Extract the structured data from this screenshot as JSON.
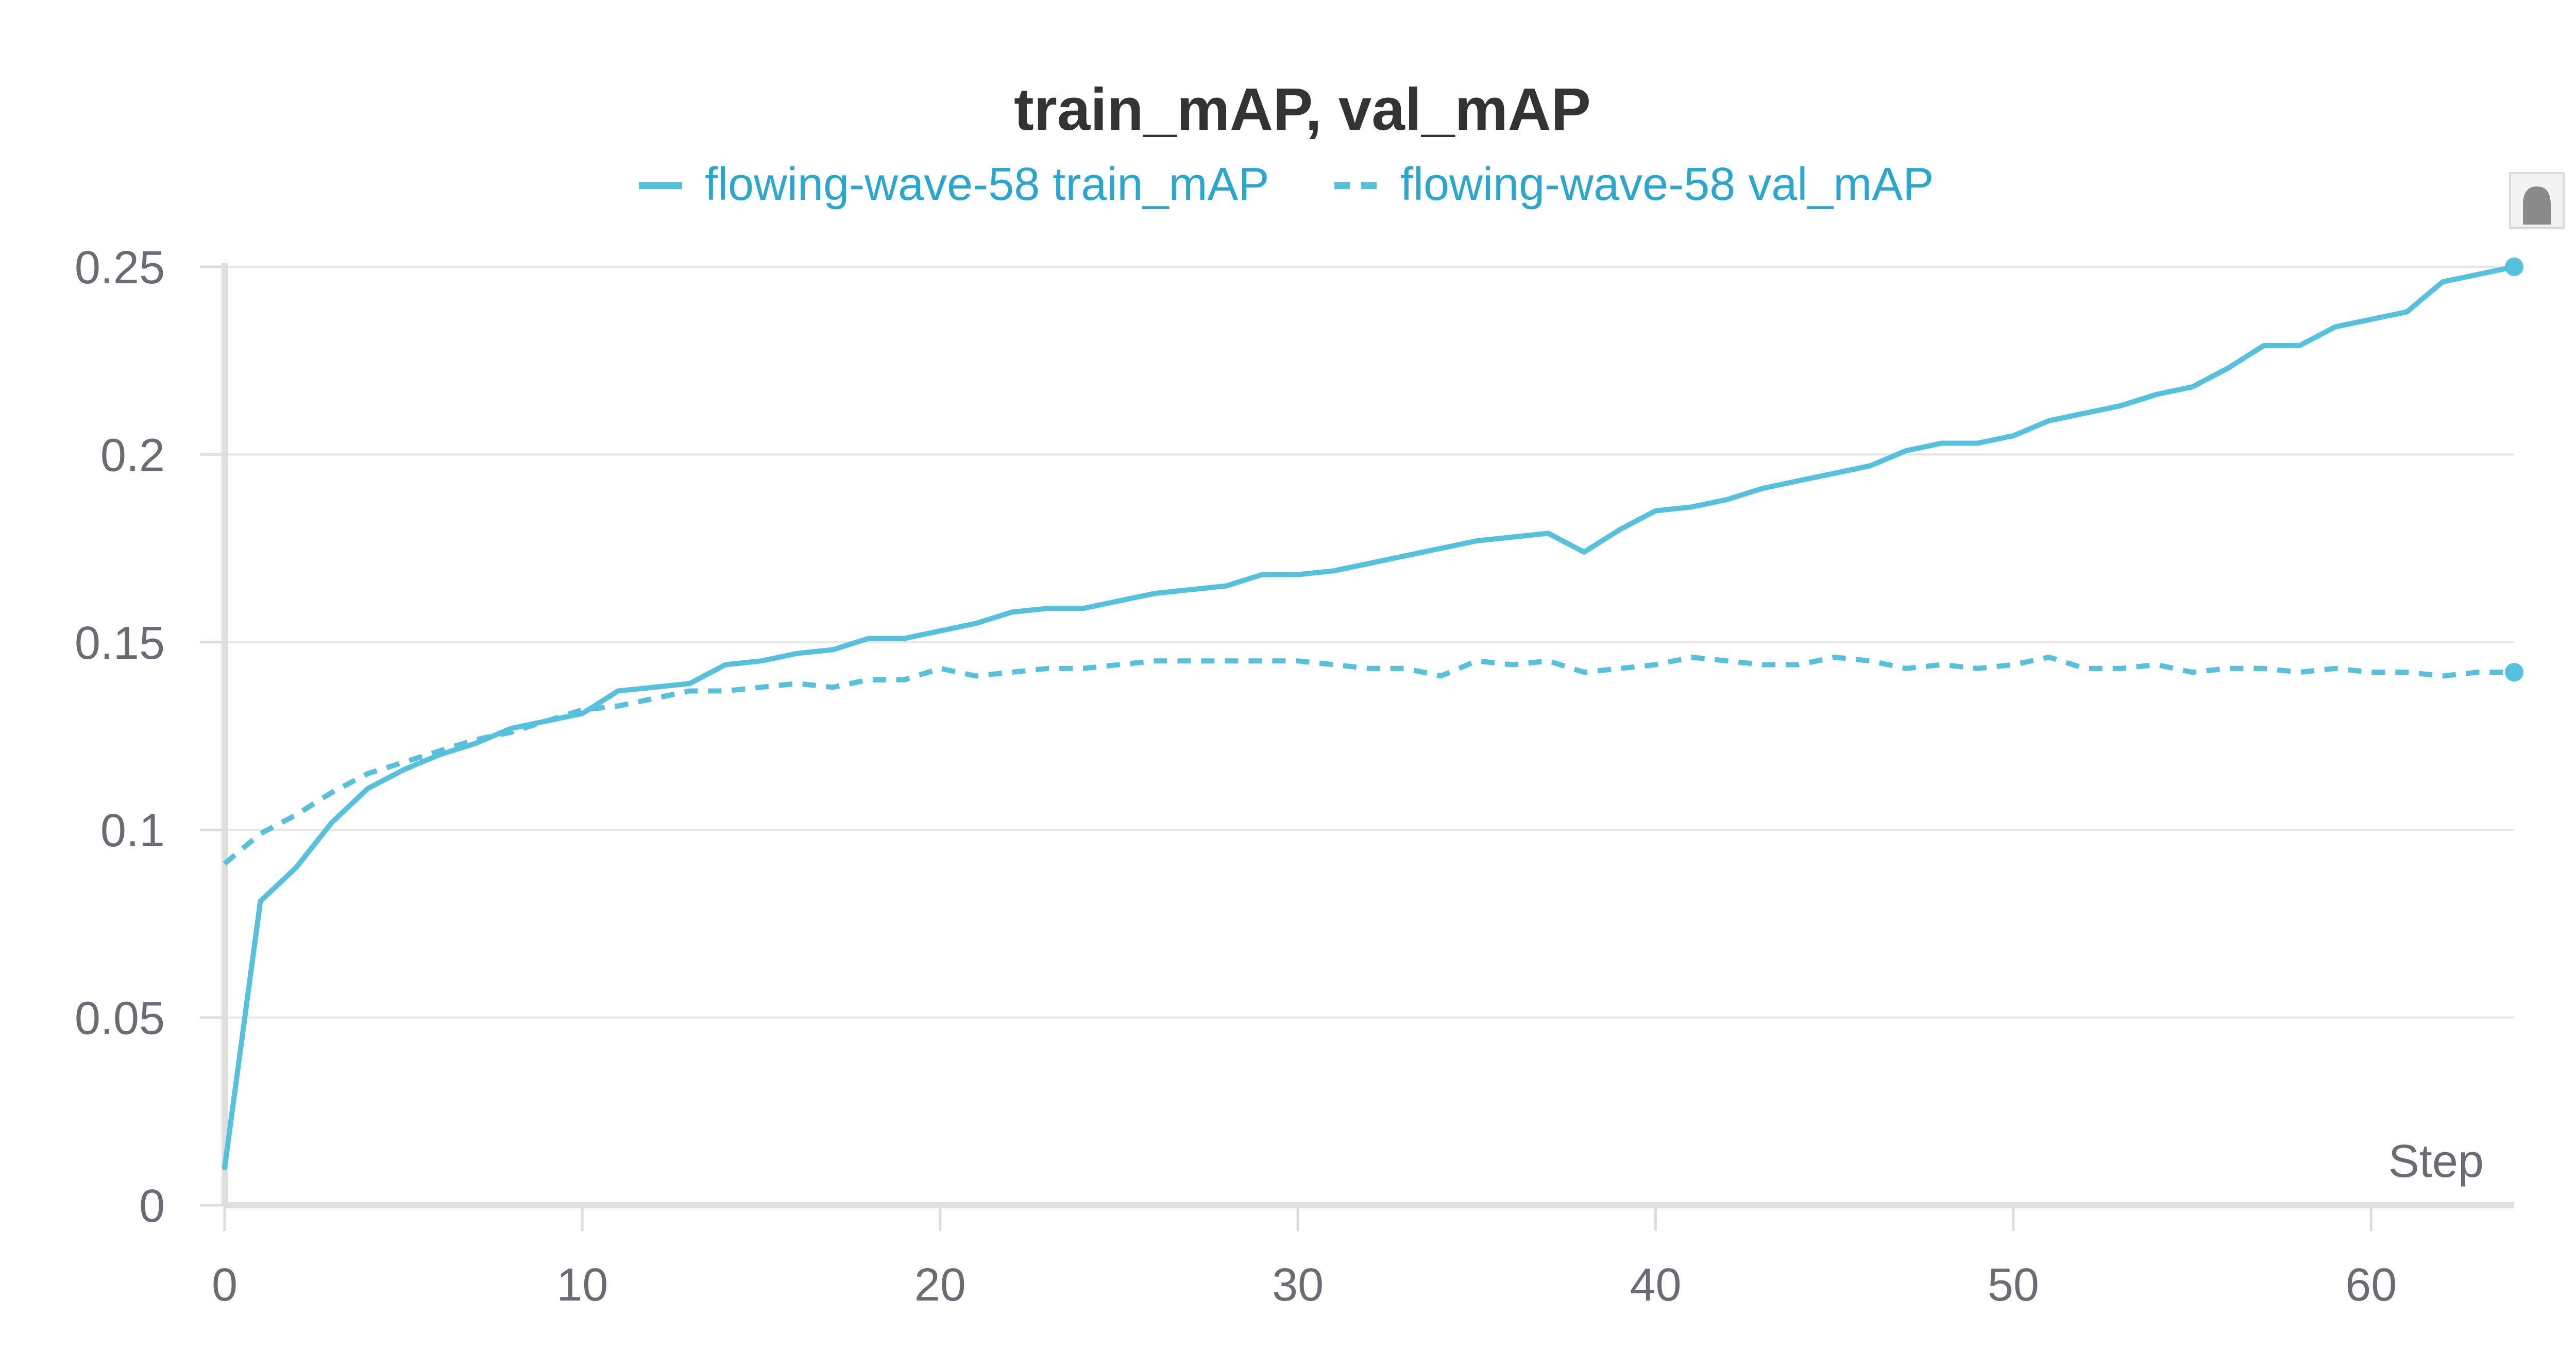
{
  "chart_data": {
    "type": "line",
    "title": "train_mAP, val_mAP",
    "xlabel": "Step",
    "ylabel": "",
    "xlim": [
      0,
      64
    ],
    "ylim": [
      0,
      0.25
    ],
    "xticks": [
      "0",
      "10",
      "20",
      "30",
      "40",
      "50",
      "60"
    ],
    "xtick_values": [
      0,
      10,
      20,
      30,
      40,
      50,
      60
    ],
    "yticks": [
      "0",
      "0.05",
      "0.1",
      "0.15",
      "0.2",
      "0.25"
    ],
    "ytick_values": [
      0,
      0.05,
      0.1,
      0.15,
      0.2,
      0.25
    ],
    "grid": true,
    "legend_position": "top-center",
    "colors": {
      "series": "#56c1dc",
      "legend_text": "#2aa7cf",
      "grid": "#e6e6e6",
      "axis": "#dedede",
      "tick_text": "#6b6b76",
      "title": "#333333"
    },
    "series": [
      {
        "name": "flowing-wave-58 train_mAP",
        "style": "solid",
        "x": [
          0,
          1,
          2,
          3,
          4,
          5,
          6,
          7,
          8,
          9,
          10,
          11,
          12,
          13,
          14,
          15,
          16,
          17,
          18,
          19,
          20,
          21,
          22,
          23,
          24,
          25,
          26,
          27,
          28,
          29,
          30,
          31,
          32,
          33,
          34,
          35,
          36,
          37,
          38,
          39,
          40,
          41,
          42,
          43,
          44,
          45,
          46,
          47,
          48,
          49,
          50,
          51,
          52,
          53,
          54,
          55,
          56,
          57,
          58,
          59,
          60,
          61,
          62,
          63,
          64
        ],
        "y": [
          0.01,
          0.081,
          0.09,
          0.102,
          0.111,
          0.116,
          0.12,
          0.123,
          0.127,
          0.129,
          0.131,
          0.137,
          0.138,
          0.139,
          0.144,
          0.145,
          0.147,
          0.148,
          0.151,
          0.151,
          0.153,
          0.155,
          0.158,
          0.159,
          0.159,
          0.161,
          0.163,
          0.164,
          0.165,
          0.168,
          0.168,
          0.169,
          0.171,
          0.173,
          0.175,
          0.177,
          0.178,
          0.179,
          0.174,
          0.18,
          0.185,
          0.186,
          0.188,
          0.191,
          0.193,
          0.195,
          0.197,
          0.201,
          0.203,
          0.203,
          0.205,
          0.209,
          0.211,
          0.213,
          0.216,
          0.218,
          0.223,
          0.229,
          0.229,
          0.234,
          0.236,
          0.238,
          0.246,
          0.248,
          0.25
        ]
      },
      {
        "name": "flowing-wave-58 val_mAP",
        "style": "dashed",
        "x": [
          0,
          1,
          2,
          3,
          4,
          5,
          6,
          7,
          8,
          9,
          10,
          11,
          12,
          13,
          14,
          15,
          16,
          17,
          18,
          19,
          20,
          21,
          22,
          23,
          24,
          25,
          26,
          27,
          28,
          29,
          30,
          31,
          32,
          33,
          34,
          35,
          36,
          37,
          38,
          39,
          40,
          41,
          42,
          43,
          44,
          45,
          46,
          47,
          48,
          49,
          50,
          51,
          52,
          53,
          54,
          55,
          56,
          57,
          58,
          59,
          60,
          61,
          62,
          63,
          64
        ],
        "y": [
          0.091,
          0.099,
          0.104,
          0.11,
          0.115,
          0.118,
          0.121,
          0.124,
          0.126,
          0.129,
          0.132,
          0.133,
          0.135,
          0.137,
          0.137,
          0.138,
          0.139,
          0.138,
          0.14,
          0.14,
          0.143,
          0.141,
          0.142,
          0.143,
          0.143,
          0.144,
          0.145,
          0.145,
          0.145,
          0.145,
          0.145,
          0.144,
          0.143,
          0.143,
          0.141,
          0.145,
          0.144,
          0.145,
          0.142,
          0.143,
          0.144,
          0.146,
          0.145,
          0.144,
          0.144,
          0.146,
          0.145,
          0.143,
          0.144,
          0.143,
          0.144,
          0.146,
          0.143,
          0.143,
          0.144,
          0.142,
          0.143,
          0.143,
          0.142,
          0.143,
          0.142,
          0.142,
          0.141,
          0.142,
          0.142
        ]
      }
    ]
  }
}
